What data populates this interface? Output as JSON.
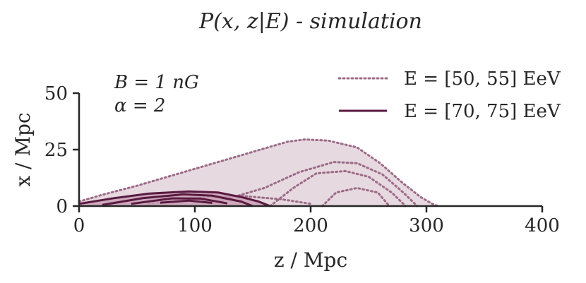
{
  "chart_data": {
    "type": "contour",
    "title": "P(x, z|E) - simulation",
    "xlabel": "z / Mpc",
    "ylabel": "x / Mpc",
    "xlim": [
      0,
      400
    ],
    "ylim": [
      0,
      50
    ],
    "xticks": [
      "0",
      "100",
      "200",
      "300",
      "400"
    ],
    "yticks": [
      "0",
      "25",
      "50"
    ],
    "annotations": [
      "B = 1 nG",
      "α = 2"
    ],
    "legend_position": "top-right",
    "colors": {
      "e50": "#9c6b87",
      "e50_fill": "#e6d9e0",
      "e70": "#5a1a40",
      "e70_fill": "#c9a0b5"
    },
    "series": [
      {
        "name": "E = [50, 55] EeV",
        "style": "dotted",
        "contours": [
          [
            [
              0,
              2
            ],
            [
              20,
              5
            ],
            [
              50,
              9
            ],
            [
              90,
              15
            ],
            [
              130,
              21
            ],
            [
              160,
              25.5
            ],
            [
              180,
              28.5
            ],
            [
              195,
              29.5
            ],
            [
              215,
              29
            ],
            [
              240,
              26
            ],
            [
              260,
              19
            ],
            [
              280,
              10
            ],
            [
              295,
              4
            ],
            [
              305,
              1
            ],
            [
              310,
              0
            ],
            [
              0,
              0
            ]
          ],
          [
            [
              120,
              2
            ],
            [
              160,
              8
            ],
            [
              190,
              15
            ],
            [
              220,
              19.5
            ],
            [
              240,
              19
            ],
            [
              262,
              14
            ],
            [
              280,
              6
            ],
            [
              292,
              0
            ]
          ],
          [
            [
              165,
              0
            ],
            [
              185,
              8
            ],
            [
              205,
              14.5
            ],
            [
              230,
              15.5
            ],
            [
              250,
              13
            ],
            [
              270,
              6
            ],
            [
              282,
              0
            ]
          ],
          [
            [
              210,
              0
            ],
            [
              222,
              6
            ],
            [
              240,
              8
            ],
            [
              258,
              6
            ],
            [
              268,
              0
            ]
          ],
          [
            [
              60,
              1
            ],
            [
              100,
              3.5
            ],
            [
              140,
              4.5
            ],
            [
              175,
              3
            ],
            [
              200,
              1
            ]
          ]
        ]
      },
      {
        "name": "E = [70, 75] EeV",
        "style": "solid",
        "contours": [
          [
            [
              0,
              1
            ],
            [
              30,
              3.5
            ],
            [
              60,
              5.5
            ],
            [
              95,
              6.5
            ],
            [
              120,
              6
            ],
            [
              140,
              4
            ],
            [
              155,
              2
            ],
            [
              165,
              0
            ],
            [
              0,
              0
            ]
          ],
          [
            [
              20,
              0.5
            ],
            [
              55,
              3.5
            ],
            [
              90,
              5.2
            ],
            [
              115,
              4.6
            ],
            [
              140,
              2
            ],
            [
              150,
              0
            ]
          ],
          [
            [
              45,
              1
            ],
            [
              80,
              3.4
            ],
            [
              105,
              3.3
            ],
            [
              128,
              1.2
            ]
          ],
          [
            [
              70,
              1.5
            ],
            [
              95,
              2.4
            ],
            [
              115,
              1.4
            ]
          ]
        ]
      }
    ]
  }
}
